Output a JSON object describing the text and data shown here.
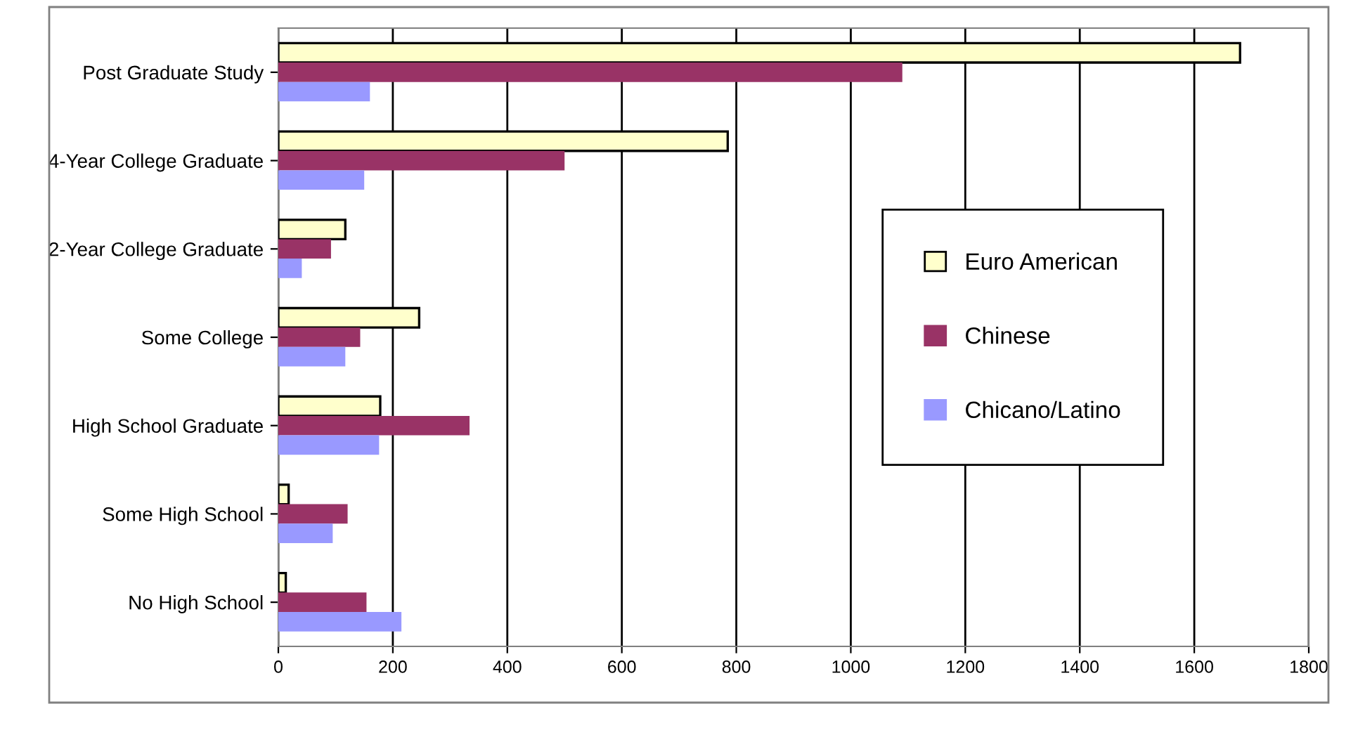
{
  "chart_data": {
    "type": "bar",
    "orientation": "horizontal",
    "categories": [
      "Post Graduate Study",
      "4-Year College Graduate",
      "2-Year College Graduate",
      "Some College",
      "High School Graduate",
      "Some High School",
      "No High School"
    ],
    "series": [
      {
        "name": "Euro American",
        "color": "#ffffcc",
        "values": [
          1680,
          785,
          117,
          246,
          178,
          18,
          13
        ]
      },
      {
        "name": "Chinese",
        "color": "#993366",
        "values": [
          1090,
          500,
          92,
          143,
          334,
          121,
          154
        ]
      },
      {
        "name": "Chicano/Latino",
        "color": "#9999ff",
        "values": [
          160,
          150,
          41,
          117,
          176,
          95,
          215
        ]
      }
    ],
    "xlim": [
      0,
      1800
    ],
    "xticks": [
      0,
      200,
      400,
      600,
      800,
      1000,
      1200,
      1400,
      1600,
      1800
    ],
    "grid": "x",
    "legend": "right"
  }
}
